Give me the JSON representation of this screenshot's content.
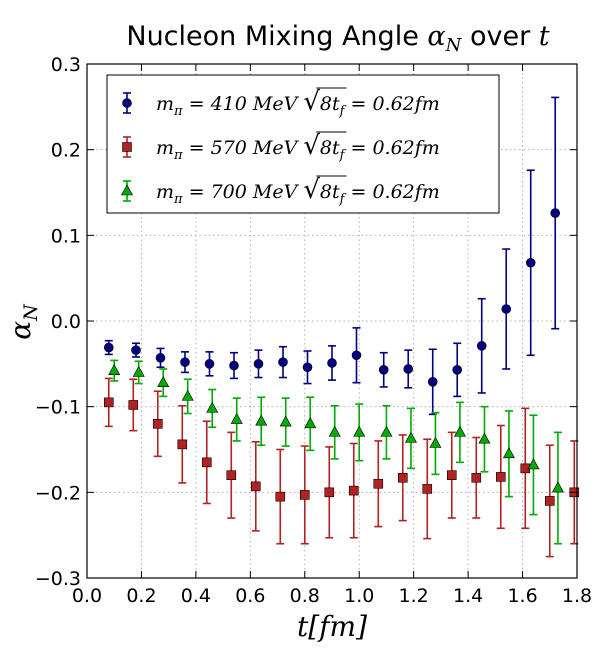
{
  "chart_data": {
    "type": "scatter",
    "title": "Nucleon Mixing Angle α_N over t",
    "title_parts": {
      "prefix": "Nucleon Mixing Angle ",
      "alpha": "α",
      "sub": "N",
      "over": " over ",
      "t": "t"
    },
    "xlabel": "t[fm]",
    "ylabel": "α_N",
    "ylabel_parts": {
      "alpha": "α",
      "sub": "N"
    },
    "xlim": [
      0.0,
      1.8
    ],
    "ylim": [
      -0.3,
      0.3
    ],
    "xticks": [
      "0.0",
      "0.2",
      "0.4",
      "0.6",
      "0.8",
      "1.0",
      "1.2",
      "1.4",
      "1.6",
      "1.8"
    ],
    "yticks": [
      "0.3",
      "0.2",
      "0.1",
      "0.0",
      "−0.1",
      "−0.2",
      "−0.3"
    ],
    "grid": true,
    "legend_position": "top-left",
    "series": [
      {
        "name": "m_π = 410 MeV √(8t_f) = 0.62fm",
        "label_parts": {
          "mass": "410",
          "tf": "0.62fm"
        },
        "color": "#000080",
        "marker": "circle",
        "x": [
          0.08,
          0.18,
          0.27,
          0.36,
          0.45,
          0.54,
          0.63,
          0.72,
          0.81,
          0.9,
          0.99,
          1.09,
          1.18,
          1.27,
          1.36,
          1.45,
          1.54,
          1.63,
          1.72
        ],
        "y": [
          -0.031,
          -0.034,
          -0.043,
          -0.048,
          -0.05,
          -0.052,
          -0.05,
          -0.048,
          -0.054,
          -0.049,
          -0.04,
          -0.057,
          -0.056,
          -0.071,
          -0.057,
          -0.029,
          0.014,
          0.068,
          0.126
        ],
        "yerr": [
          0.008,
          0.008,
          0.011,
          0.012,
          0.014,
          0.015,
          0.016,
          0.018,
          0.019,
          0.02,
          0.032,
          0.02,
          0.022,
          0.038,
          0.031,
          0.055,
          0.07,
          0.108,
          0.135
        ]
      },
      {
        "name": "m_π = 570 MeV √(8t_f) = 0.62fm",
        "label_parts": {
          "mass": "570",
          "tf": "0.62fm"
        },
        "color": "#b22222",
        "marker": "square",
        "x": [
          0.08,
          0.17,
          0.26,
          0.35,
          0.44,
          0.53,
          0.62,
          0.71,
          0.8,
          0.89,
          0.98,
          1.07,
          1.16,
          1.25,
          1.34,
          1.43,
          1.52,
          1.61,
          1.7,
          1.79
        ],
        "y": [
          -0.095,
          -0.098,
          -0.12,
          -0.144,
          -0.165,
          -0.18,
          -0.193,
          -0.205,
          -0.203,
          -0.2,
          -0.198,
          -0.19,
          -0.183,
          -0.196,
          -0.18,
          -0.183,
          -0.182,
          -0.172,
          -0.21,
          -0.2
        ],
        "yerr": [
          0.028,
          0.03,
          0.038,
          0.045,
          0.048,
          0.05,
          0.052,
          0.055,
          0.057,
          0.053,
          0.055,
          0.05,
          0.05,
          0.058,
          0.05,
          0.047,
          0.06,
          0.07,
          0.065,
          0.06
        ]
      },
      {
        "name": "m_π = 700 MeV √(8t_f) = 0.62fm",
        "label_parts": {
          "mass": "700",
          "tf": "0.62fm"
        },
        "color": "#00aa00",
        "marker": "triangle",
        "x": [
          0.1,
          0.19,
          0.28,
          0.37,
          0.46,
          0.55,
          0.64,
          0.73,
          0.82,
          0.91,
          1.0,
          1.1,
          1.19,
          1.28,
          1.37,
          1.46,
          1.55,
          1.64,
          1.73
        ],
        "y": [
          -0.058,
          -0.06,
          -0.072,
          -0.088,
          -0.102,
          -0.115,
          -0.117,
          -0.118,
          -0.12,
          -0.13,
          -0.13,
          -0.13,
          -0.137,
          -0.143,
          -0.13,
          -0.138,
          -0.155,
          -0.168,
          -0.195
        ],
        "yerr": [
          0.012,
          0.013,
          0.016,
          0.02,
          0.022,
          0.025,
          0.028,
          0.028,
          0.031,
          0.031,
          0.033,
          0.031,
          0.035,
          0.036,
          0.035,
          0.038,
          0.05,
          0.058,
          0.065
        ]
      }
    ]
  }
}
